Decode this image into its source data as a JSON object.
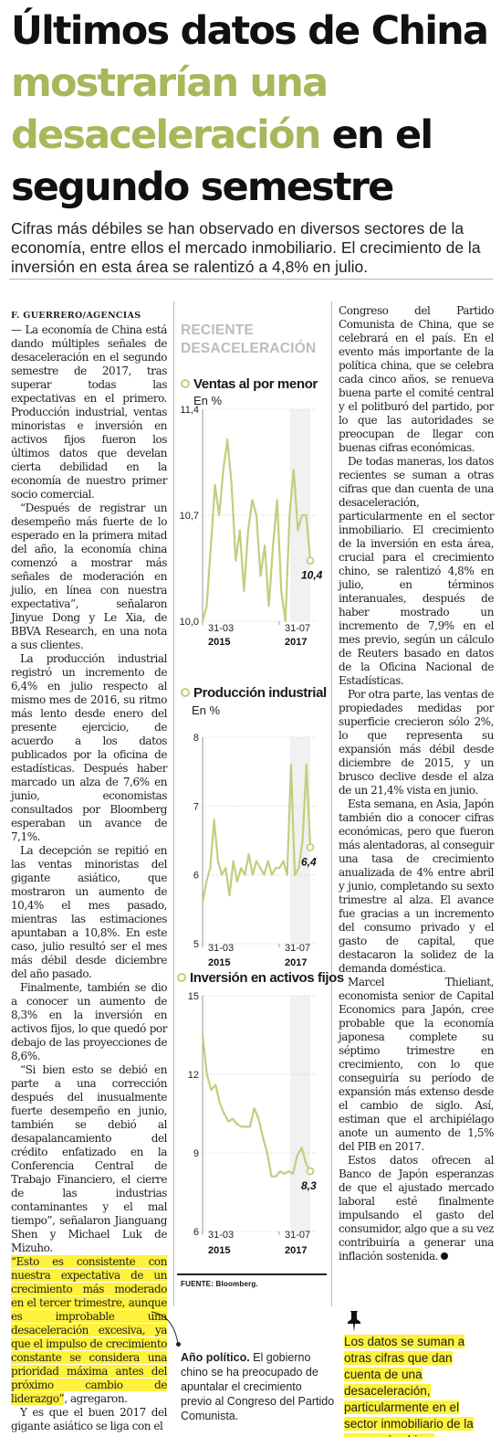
{
  "headline": {
    "part1": "Últimos datos de China ",
    "part2": "mostrarían una desaceleración",
    "part3": " en el segundo semestre"
  },
  "subhead": "Cifras más débiles se han observado en diversos sectores de la economía, entre ellos el mercado inmobiliario. El crecimiento de la inversión en esta área se ralentizó a 4,8% en julio.",
  "byline": "F. GUERRERO/AGENCIAS",
  "left_column": {
    "p1": "— La economía de China está dando múltiples señales de desaceleración en el segundo semestre de 2017, tras superar todas las expectativas en el primero. Producción industrial, ventas minoristas e inversión en activos fijos fueron los últimos datos que develan cierta debilidad en la economía de nuestro primer socio comercial.",
    "p2": "“Después de registrar un desempeño más fuerte de lo esperado en la primera mitad del año, la economía china comenzó a mostrar más señales de moderación en julio, en línea con nuestra expectativa”, señalaron Jinyue Dong y Le Xia, de BBVA Research, en una nota a sus clientes.",
    "p3": "La producción industrial registró un incremento de 6,4% en julio respecto al mismo mes de 2016, su ritmo más lento desde enero del presente ejercicio, de acuerdo a los datos publicados por la oficina de estadísticas. Después haber marcado un alza de 7,6% en junio, economistas consultados por Bloomberg esperaban un avance de 7,1%.",
    "p4": "La decepción se repitió en las ventas minoristas del gigante asiático, que mostraron un aumento de 10,4% el mes pasado, mientras las estimaciones apuntaban a 10,8%. En este caso, julio resultó ser el mes más débil desde diciembre del año pasado.",
    "p5": "Finalmente, también se dio a conocer un aumento de 8,3% en la inversión en activos fijos, lo que quedó por debajo de las proyecciones de 8,6%.",
    "p6": "“Si bien esto se debió en parte a una corrección después del inusualmente fuerte desempeño en junio, también se debió al desapalancamiento del crédito enfatizado en la Conferencia Central de Trabajo Financiero, el cierre de las industrias contaminantes y el mal tiempo”, señalaron Jianguang Shen y Michael Luk de Mizuho.",
    "p7_highlight": "“Esto es consistente con nuestra expectativa de un crecimiento más moderado en el tercer trimestre, aunque es improbable una desaceleración excesiva, ya que el impulso de crecimiento constante se considera una prioridad máxima antes del próximo cambio de liderazgo”",
    "p7_tail": ", agregaron.",
    "p8": "Y es que el buen 2017 del gigante asiático se liga con el"
  },
  "right_column": {
    "p1": "Congreso del Partido Comunista de China, que se celebrará en el país. En el evento más importante de la política china, que se celebra cada cinco años, se renueva buena parte el comité central y el politburó del partido, por lo que las autoridades se preocupan de llegar con buenas cifras económicas.",
    "p2": "De todas maneras, los datos recientes se suman a otras cifras que dan cuenta de una desaceleración, particularmente en el sector inmobiliario. El crecimiento de la inversión en esta área, crucial para el crecimiento chino, se ralentizó 4,8% en julio, en términos interanuales, después de haber mostrado un incremento de 7,9% en el mes previo, según un cálculo de Reuters basado en datos de la Oficina Nacional de Estadísticas.",
    "p3": "Por otra parte, las ventas de propiedades medidas por superficie crecieron sólo 2%, lo que representa su expansión más débil desde diciembre de 2015, y un brusco declive desde el alza de un 21,4% vista en junio.",
    "p4": "Esta semana, en Asia, Japón también dio a conocer cifras económicas, pero que fueron más alentadoras, al conseguir una tasa de crecimiento anualizada de 4% entre abril y junio, completando su sexto trimestre al alza. El avance fue gracias a un incremento del consumo privado y el gasto de capital, que destacaron la solidez de la demanda doméstica.",
    "p5": "Marcel Thieliant, economista senior de Capital Economics para Japón, cree probable que la economía japonesa complete su séptimo trimestre en crecimiento, con lo que conseguiría su período de expansión más extenso desde el cambio de siglo. Así, estiman que el archipiélago anote un aumento de 1,5% del PIB en 2017.",
    "p6": "Estos datos ofrecen al Banco de Japón esperanzas de que el ajustado mercado laboral esté finalmente impulsando el gasto del consumidor, algo que a su vez contribuiría a generar una inflación sostenida."
  },
  "chart_section_title": "RECIENTE DESACELERACIÓN",
  "chart_data": [
    {
      "type": "line",
      "title": "Ventas al por menor",
      "unit": "En %",
      "ylim": [
        10.0,
        11.4
      ],
      "yticks": [
        "11,4",
        "10,7",
        "10,0"
      ],
      "xticks": [
        "31-03",
        "31-07"
      ],
      "years": [
        "2015",
        "2017"
      ],
      "end_label": "10,4",
      "values": [
        10.0,
        10.1,
        10.5,
        10.9,
        10.7,
        11.0,
        11.2,
        10.9,
        10.4,
        10.6,
        10.2,
        10.6,
        10.8,
        10.7,
        10.3,
        10.5,
        10.1,
        10.5,
        10.8,
        10.2,
        10.0,
        10.7,
        11.0,
        10.6,
        10.7,
        10.7,
        10.4
      ]
    },
    {
      "type": "line",
      "title": "Producción industrial",
      "unit": "En %",
      "ylim": [
        5,
        8
      ],
      "yticks": [
        "8",
        "7",
        "6",
        "5"
      ],
      "xticks": [
        "31-03",
        "31-07"
      ],
      "years": [
        "2015",
        "2017"
      ],
      "end_label": "6,4",
      "values": [
        5.6,
        5.9,
        6.1,
        6.8,
        6.2,
        6.0,
        6.1,
        5.7,
        6.2,
        5.9,
        6.1,
        6.0,
        6.3,
        6.0,
        6.2,
        6.1,
        6.0,
        6.2,
        6.0,
        6.1,
        6.1,
        6.2,
        6.0,
        7.6,
        6.0,
        6.1,
        6.5,
        7.6,
        6.4
      ]
    },
    {
      "type": "line",
      "title": "Inversión en activos fijos",
      "unit": "",
      "ylim": [
        6,
        15
      ],
      "yticks": [
        "15",
        "12",
        "9",
        "6"
      ],
      "xticks": [
        "31-03",
        "31-07"
      ],
      "years": [
        "2015",
        "2017"
      ],
      "end_label": "8,3",
      "values": [
        13.5,
        12.0,
        11.4,
        11.6,
        10.9,
        10.5,
        10.2,
        10.3,
        10.1,
        10.0,
        10.0,
        10.0,
        10.7,
        10.3,
        9.6,
        9.0,
        8.1,
        8.1,
        8.3,
        8.2,
        8.3,
        8.2,
        8.9,
        9.2,
        8.6,
        8.3
      ]
    }
  ],
  "source": "FUENTE: Bloomberg.",
  "side_note": {
    "title": "Año político.",
    "text": " El gobierno chino se ha preocupado de apuntalar el crecimiento previo al Congreso del Partido Comunista."
  },
  "callout": "Los datos se suman a otras cifras que dan cuenta de una desaceleración, particularmente en el sector inmobiliario de la economía china.",
  "colors": {
    "accent_green": "#a9b65a",
    "line_green": "#c5cc7e",
    "highlight": "#fff23c"
  }
}
